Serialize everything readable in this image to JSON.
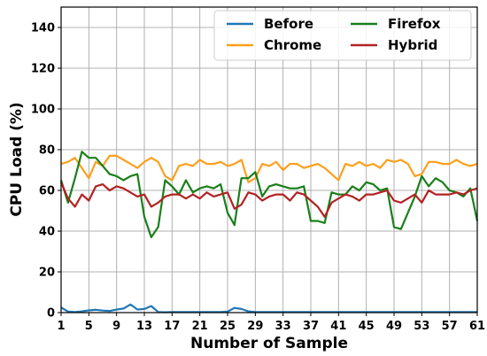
{
  "chart_data": {
    "type": "line",
    "xlabel": "Number of Sample",
    "ylabel": "CPU Load (%)",
    "xlim": [
      1,
      61
    ],
    "ylim": [
      0,
      150
    ],
    "x_ticks": [
      1,
      5,
      9,
      13,
      17,
      21,
      25,
      29,
      33,
      37,
      41,
      45,
      49,
      53,
      57,
      61
    ],
    "y_ticks": [
      0,
      20,
      40,
      60,
      80,
      100,
      120,
      140
    ],
    "grid": true,
    "legend_position": "top-right",
    "series": [
      {
        "name": "Before",
        "color": "#1f77b4",
        "values": [
          2.5,
          0.5,
          0.3,
          0.6,
          1.1,
          1.4,
          1.0,
          0.8,
          1.5,
          2.0,
          4.0,
          1.5,
          1.8,
          3.2,
          0.3,
          0.2,
          0.3,
          0.3,
          0.3,
          0.3,
          0.3,
          0.3,
          0.3,
          0.3,
          0.5,
          2.3,
          1.8,
          0.6,
          0.3,
          0.3,
          0.3,
          0.3,
          0.3,
          0.3,
          0.3,
          0.3,
          0.3,
          0.3,
          0.3,
          0.3,
          0.3,
          0.3,
          0.3,
          0.3,
          0.3,
          0.3,
          0.3,
          0.3,
          0.3,
          0.3,
          0.3,
          0.3,
          0.3,
          0.3,
          0.3,
          0.3,
          0.3,
          0.3,
          0.3,
          0.3,
          0.3
        ]
      },
      {
        "name": "Chrome",
        "color": "#ff9f1c",
        "values": [
          73,
          74,
          76,
          71,
          66,
          74,
          72,
          77,
          77,
          75,
          73,
          71,
          74,
          76,
          74,
          67,
          65,
          72,
          73,
          72,
          75,
          73,
          73,
          74,
          72,
          73,
          75,
          64,
          66,
          73,
          72,
          74,
          70,
          73,
          73,
          71,
          72,
          73,
          71,
          68,
          65,
          73,
          72,
          74,
          72,
          73,
          71,
          75,
          74,
          75,
          73,
          67,
          68,
          74,
          74,
          73,
          73,
          75,
          73,
          72,
          73
        ]
      },
      {
        "name": "Firefox",
        "color": "#1a7f1a",
        "values": [
          65,
          54,
          66,
          79,
          76,
          76,
          72,
          68,
          67,
          65,
          67,
          68,
          47,
          37,
          42,
          65,
          62,
          58,
          65,
          59,
          61,
          62,
          61,
          63,
          49,
          43,
          66,
          66,
          69,
          57,
          62,
          63,
          62,
          61,
          61,
          62,
          45,
          45,
          44,
          59,
          58,
          58,
          62,
          60,
          64,
          63,
          60,
          61,
          42,
          41,
          49,
          57,
          67,
          62,
          66,
          64,
          60,
          59,
          57,
          61,
          45
        ]
      },
      {
        "name": "Hybrid",
        "color": "#b22222",
        "values": [
          64,
          56,
          52,
          58,
          55,
          62,
          63,
          60,
          62,
          61,
          59,
          57,
          58,
          52,
          54,
          57,
          58,
          58,
          56,
          58,
          56,
          59,
          57,
          58,
          59,
          51,
          53,
          59,
          58,
          55,
          57,
          58,
          58,
          55,
          59,
          58,
          55,
          52,
          47,
          54,
          56,
          58,
          57,
          55,
          58,
          58,
          59,
          60,
          55,
          54,
          56,
          58,
          54,
          60,
          58,
          58,
          58,
          59,
          58,
          60,
          61
        ]
      }
    ]
  }
}
